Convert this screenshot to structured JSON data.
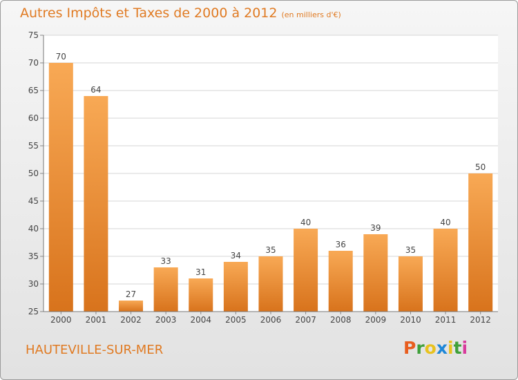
{
  "header": {
    "title": "Autres Impôts et Taxes de 2000 à 2012",
    "unit": "(en milliers d'€)"
  },
  "footer": {
    "commune": "HAUTEVILLE-SUR-MER",
    "logo": "Proxiti"
  },
  "colors": {
    "accent": "#e07a22",
    "bar_top": "#f8a955",
    "bar_bottom": "#d8731c",
    "logo_letters": [
      "#e85d1e",
      "#3fa03a",
      "#e8c21e",
      "#1e87d8",
      "#e8c21e",
      "#3fa03a",
      "#d83a9c"
    ]
  },
  "chart_data": {
    "type": "bar",
    "categories": [
      "2000",
      "2001",
      "2002",
      "2003",
      "2004",
      "2005",
      "2006",
      "2007",
      "2008",
      "2009",
      "2010",
      "2011",
      "2012"
    ],
    "values": [
      70,
      64,
      27,
      33,
      31,
      34,
      35,
      40,
      36,
      39,
      35,
      40,
      50
    ],
    "ylim": [
      25,
      75
    ],
    "yticks": [
      25,
      30,
      35,
      40,
      45,
      50,
      55,
      60,
      65,
      70,
      75
    ],
    "grid": true
  }
}
